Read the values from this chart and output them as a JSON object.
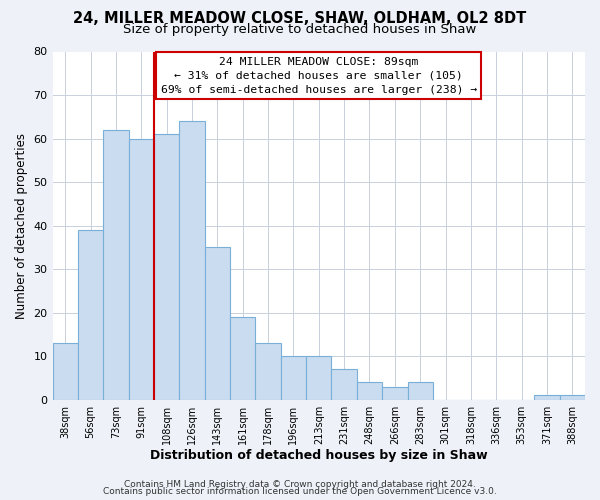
{
  "title": "24, MILLER MEADOW CLOSE, SHAW, OLDHAM, OL2 8DT",
  "subtitle": "Size of property relative to detached houses in Shaw",
  "xlabel": "Distribution of detached houses by size in Shaw",
  "ylabel": "Number of detached properties",
  "bar_labels": [
    "38sqm",
    "56sqm",
    "73sqm",
    "91sqm",
    "108sqm",
    "126sqm",
    "143sqm",
    "161sqm",
    "178sqm",
    "196sqm",
    "213sqm",
    "231sqm",
    "248sqm",
    "266sqm",
    "283sqm",
    "301sqm",
    "318sqm",
    "336sqm",
    "353sqm",
    "371sqm",
    "388sqm"
  ],
  "bar_values": [
    13,
    39,
    62,
    60,
    61,
    64,
    35,
    19,
    13,
    10,
    10,
    7,
    4,
    3,
    4,
    0,
    0,
    0,
    0,
    1,
    1
  ],
  "bar_color": "#c9dcf0",
  "bar_edge_color": "#7ab0d8",
  "vline_x_idx": 3.5,
  "vline_color": "#cc0000",
  "annotation_title": "24 MILLER MEADOW CLOSE: 89sqm",
  "annotation_line1": "← 31% of detached houses are smaller (105)",
  "annotation_line2": "69% of semi-detached houses are larger (238) →",
  "ylim": [
    0,
    80
  ],
  "yticks": [
    0,
    10,
    20,
    30,
    40,
    50,
    60,
    70,
    80
  ],
  "footer1": "Contains HM Land Registry data © Crown copyright and database right 2024.",
  "footer2": "Contains public sector information licensed under the Open Government Licence v3.0.",
  "bg_color": "#eef2f8",
  "plot_bg_color": "#ffffff",
  "title_fontsize": 10.5,
  "subtitle_fontsize": 9.5,
  "grid_color": "#c8d0dc"
}
